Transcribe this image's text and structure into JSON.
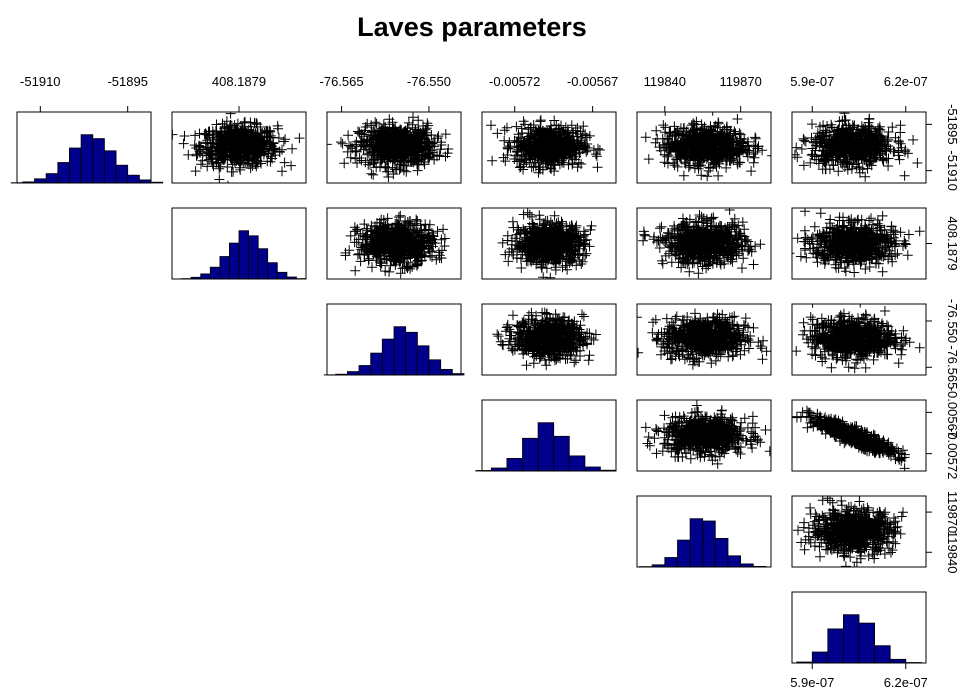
{
  "title": "Laves parameters",
  "colors": {
    "hist_fill": "#00008B",
    "marks": "#000000",
    "panel_border": "#000000"
  },
  "chart_data": {
    "type": "pairs",
    "title": "Laves parameters",
    "variables": [
      {
        "name": "",
        "range": [
          -51914,
          -51891
        ],
        "mean": -51902,
        "sd": 3.2,
        "ticks": [
          -51910,
          -51895
        ],
        "tick_labels": [
          "-51910",
          "-51895"
        ]
      },
      {
        "name": "",
        "range": [
          408.18776,
          408.18804
        ],
        "mean": 408.1879,
        "sd": 4e-05,
        "ticks": [
          408.1879
        ],
        "tick_labels": [
          "408.1879"
        ]
      },
      {
        "name": "",
        "range": [
          -76.5675,
          -76.5445
        ],
        "mean": -76.5555,
        "sd": 0.0032,
        "ticks": [
          -76.565,
          -76.55
        ],
        "tick_labels": [
          "-76.565",
          "-76.550"
        ]
      },
      {
        "name": "",
        "range": [
          -0.005741,
          -0.005655
        ],
        "mean": -0.005698,
        "sd": 1.1e-05,
        "ticks": [
          -0.00572,
          -0.00567
        ],
        "tick_labels": [
          "-0.00572",
          "-0.00567"
        ]
      },
      {
        "name": "",
        "range": [
          119829,
          119882
        ],
        "mean": 119856,
        "sd": 8,
        "ticks": [
          119840,
          119870
        ],
        "tick_labels": [
          "119840",
          "119870"
        ]
      },
      {
        "name": "",
        "range": [
          5.835e-07,
          6.265e-07
        ],
        "mean": 6.03e-07,
        "sd": 6.5e-09,
        "ticks": [
          5.9e-07,
          6.2e-07
        ],
        "tick_labels": [
          "5.9e-07",
          "6.2e-07"
        ]
      }
    ],
    "diagonal": "histogram",
    "upper": "scatter",
    "lower": "empty",
    "marker": "plus",
    "correlations": {
      "3-5": -0.9
    },
    "histograms": [
      {
        "breaks": [
          -51915,
          -51913,
          -51911,
          -51909,
          -51907,
          -51905,
          -51903,
          -51901,
          -51899,
          -51897,
          -51895,
          -51893,
          -51891,
          -51889
        ],
        "counts": [
          5,
          20,
          75,
          170,
          370,
          630,
          870,
          800,
          580,
          320,
          140,
          55,
          15
        ]
      },
      {
        "breaks": [
          408.18776,
          408.18778,
          408.1878,
          408.18782,
          408.18784,
          408.18786,
          408.18788,
          408.1879,
          408.18792,
          408.18794,
          408.18796,
          408.18798,
          408.188,
          408.18802,
          408.18804
        ],
        "counts": [
          2,
          8,
          30,
          90,
          210,
          400,
          640,
          860,
          770,
          540,
          290,
          120,
          35,
          8
        ]
      },
      {
        "breaks": [
          -76.568,
          -76.566,
          -76.564,
          -76.562,
          -76.56,
          -76.558,
          -76.556,
          -76.554,
          -76.552,
          -76.55,
          -76.548,
          -76.546,
          -76.544
        ],
        "counts": [
          4,
          15,
          60,
          170,
          390,
          640,
          860,
          760,
          520,
          270,
          100,
          25
        ]
      },
      {
        "breaks": [
          -0.005745,
          -0.005735,
          -0.005725,
          -0.005715,
          -0.005705,
          -0.005695,
          -0.005685,
          -0.005675,
          -0.005665,
          -0.005655
        ],
        "counts": [
          10,
          60,
          250,
          650,
          960,
          690,
          300,
          80,
          15
        ]
      },
      {
        "breaks": [
          119830,
          119835,
          119840,
          119845,
          119850,
          119855,
          119860,
          119865,
          119870,
          119875,
          119880
        ],
        "counts": [
          8,
          40,
          170,
          480,
          860,
          820,
          510,
          200,
          55,
          10
        ]
      },
      {
        "breaks": [
          5.85e-07,
          5.9e-07,
          5.95e-07,
          6e-07,
          6.05e-07,
          6.1e-07,
          6.15e-07,
          6.2e-07,
          6.25e-07
        ],
        "counts": [
          20,
          210,
          650,
          920,
          760,
          330,
          70,
          10
        ]
      }
    ]
  }
}
